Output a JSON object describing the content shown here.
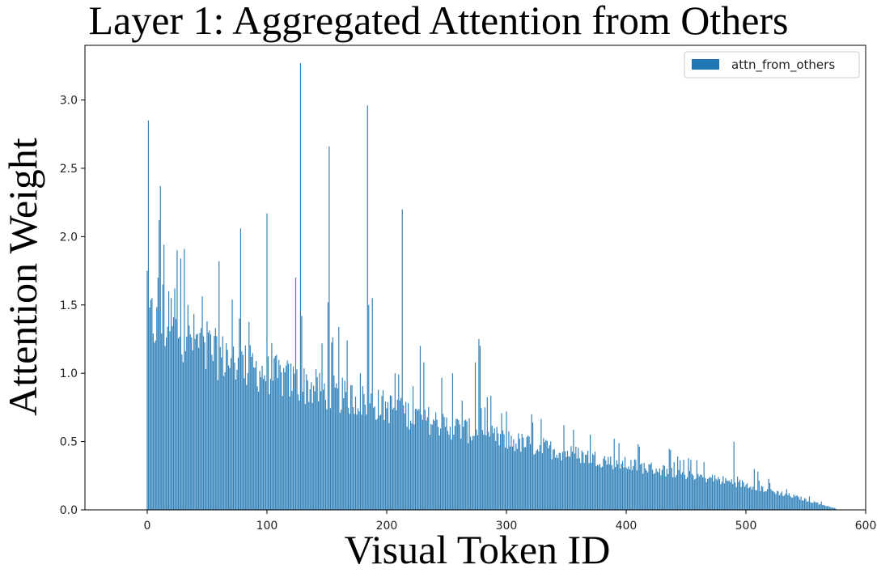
{
  "chart_data": {
    "type": "bar",
    "title": "Layer 1: Aggregated Attention from Others",
    "xlabel": "Visual Token ID",
    "ylabel": "Attention Weight",
    "xlim": [
      -52,
      600
    ],
    "ylim": [
      0,
      3.4
    ],
    "xticks": [
      0,
      100,
      200,
      300,
      400,
      500,
      600
    ],
    "yticks": [
      0.0,
      0.5,
      1.0,
      1.5,
      2.0,
      2.5,
      3.0
    ],
    "xtick_labels": [
      "0",
      "100",
      "200",
      "300",
      "400",
      "500",
      "600"
    ],
    "ytick_labels": [
      "0.0",
      "0.5",
      "1.0",
      "1.5",
      "2.0",
      "2.5",
      "3.0"
    ],
    "legend": {
      "position": "top-right",
      "entries": [
        "attn_from_others"
      ]
    },
    "grid": false,
    "series": [
      {
        "name": "attn_from_others",
        "color": "#1f77b4",
        "n_tokens": 576,
        "trend": [
          [
            0,
            1.4
          ],
          [
            20,
            1.36
          ],
          [
            40,
            1.27
          ],
          [
            60,
            1.15
          ],
          [
            100,
            1.02
          ],
          [
            150,
            0.88
          ],
          [
            200,
            0.77
          ],
          [
            250,
            0.63
          ],
          [
            300,
            0.52
          ],
          [
            350,
            0.43
          ],
          [
            400,
            0.34
          ],
          [
            450,
            0.27
          ],
          [
            500,
            0.19
          ],
          [
            540,
            0.1
          ],
          [
            560,
            0.05
          ],
          [
            575,
            0.01
          ]
        ],
        "spikes": [
          {
            "x": 0,
            "y": 1.75
          },
          {
            "x": 1,
            "y": 2.85
          },
          {
            "x": 2,
            "y": 1.48
          },
          {
            "x": 4,
            "y": 1.55
          },
          {
            "x": 9,
            "y": 1.7
          },
          {
            "x": 10,
            "y": 2.12
          },
          {
            "x": 11,
            "y": 2.37
          },
          {
            "x": 13,
            "y": 1.65
          },
          {
            "x": 14,
            "y": 1.94
          },
          {
            "x": 18,
            "y": 1.6
          },
          {
            "x": 20,
            "y": 1.55
          },
          {
            "x": 23,
            "y": 1.62
          },
          {
            "x": 25,
            "y": 1.9
          },
          {
            "x": 28,
            "y": 1.84
          },
          {
            "x": 31,
            "y": 1.91
          },
          {
            "x": 34,
            "y": 1.5
          },
          {
            "x": 50,
            "y": 1.38
          },
          {
            "x": 60,
            "y": 1.82
          },
          {
            "x": 66,
            "y": 1.22
          },
          {
            "x": 77,
            "y": 1.4
          },
          {
            "x": 78,
            "y": 2.06
          },
          {
            "x": 100,
            "y": 2.17
          },
          {
            "x": 124,
            "y": 1.7
          },
          {
            "x": 128,
            "y": 3.27
          },
          {
            "x": 129,
            "y": 1.42
          },
          {
            "x": 151,
            "y": 1.52
          },
          {
            "x": 152,
            "y": 2.66
          },
          {
            "x": 160,
            "y": 1.34
          },
          {
            "x": 178,
            "y": 1.0
          },
          {
            "x": 184,
            "y": 2.96
          },
          {
            "x": 185,
            "y": 1.5
          },
          {
            "x": 188,
            "y": 1.55
          },
          {
            "x": 207,
            "y": 1.0
          },
          {
            "x": 213,
            "y": 2.2
          },
          {
            "x": 228,
            "y": 1.2
          },
          {
            "x": 231,
            "y": 1.08
          },
          {
            "x": 255,
            "y": 1.0
          },
          {
            "x": 263,
            "y": 0.8
          },
          {
            "x": 274,
            "y": 1.08
          },
          {
            "x": 277,
            "y": 1.25
          },
          {
            "x": 278,
            "y": 1.2
          },
          {
            "x": 282,
            "y": 0.75
          },
          {
            "x": 300,
            "y": 0.72
          },
          {
            "x": 321,
            "y": 0.7
          },
          {
            "x": 348,
            "y": 0.62
          },
          {
            "x": 370,
            "y": 0.55
          },
          {
            "x": 390,
            "y": 0.52
          },
          {
            "x": 410,
            "y": 0.48
          },
          {
            "x": 440,
            "y": 0.35
          },
          {
            "x": 465,
            "y": 0.35
          },
          {
            "x": 490,
            "y": 0.5
          },
          {
            "x": 507,
            "y": 0.3
          },
          {
            "x": 510,
            "y": 0.28
          }
        ]
      }
    ]
  }
}
